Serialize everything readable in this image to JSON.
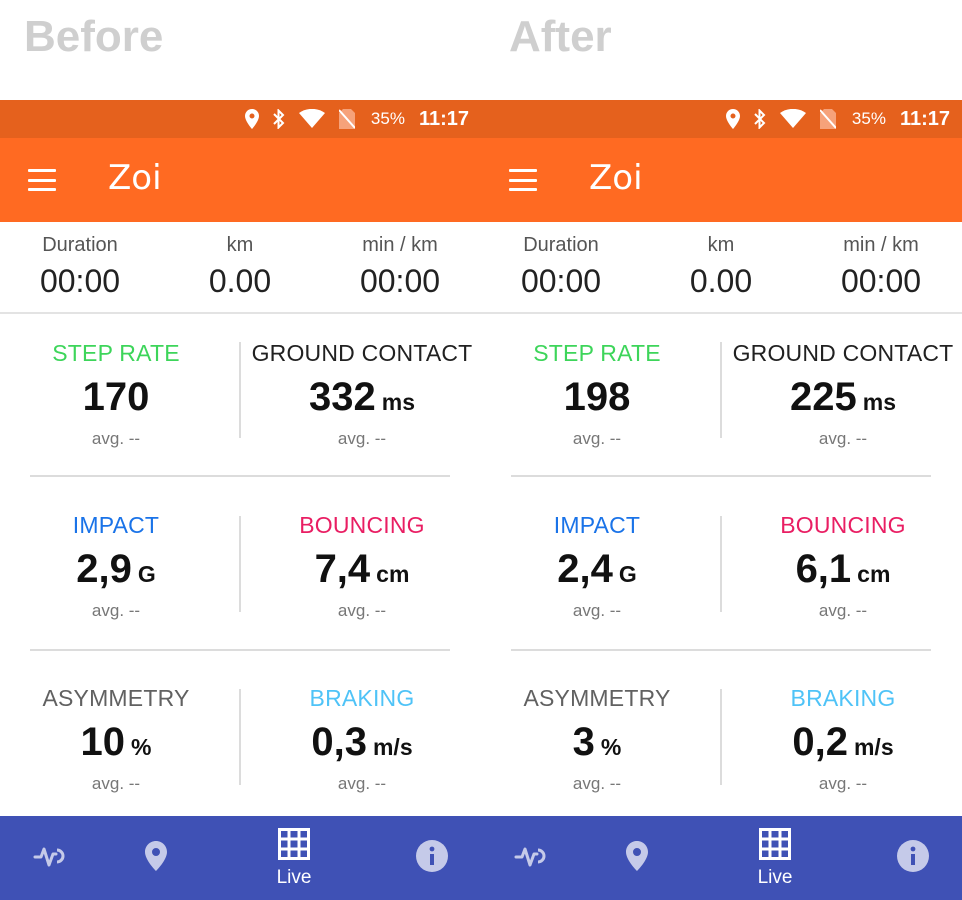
{
  "comparison": {
    "left_heading": "Before",
    "right_heading": "After"
  },
  "status": {
    "battery": "35%",
    "time": "11:17"
  },
  "app": {
    "title": "Zoi"
  },
  "summary": {
    "duration_label": "Duration",
    "distance_label": "km",
    "pace_label": "min / km",
    "duration_value": "00:00",
    "distance_value": "0.00",
    "pace_value": "00:00"
  },
  "labels": {
    "step_rate": "STEP RATE",
    "ground_contact": "GROUND CONTACT",
    "impact": "IMPACT",
    "bouncing": "BOUNCING",
    "asymmetry": "ASYMMETRY",
    "braking": "BRAKING",
    "avg": "avg. --"
  },
  "units": {
    "ms": "ms",
    "g": "G",
    "cm": "cm",
    "pct": "%",
    "ms2": "m/s"
  },
  "colors": {
    "step_rate": "#3dd55a",
    "ground_contact": "#212121",
    "impact": "#1a73e8",
    "bouncing": "#e91e63",
    "asymmetry": "#616161",
    "braking": "#4fc3f7",
    "statusbar": "#e5611d",
    "appbar": "#ff6a22",
    "navbar": "#3f51b5"
  },
  "before": {
    "step_rate": "170",
    "ground_contact": "332",
    "impact": "2,9",
    "bouncing": "7,4",
    "asymmetry": "10",
    "braking": "0,3"
  },
  "after": {
    "step_rate": "198",
    "ground_contact": "225",
    "impact": "2,4",
    "bouncing": "6,1",
    "asymmetry": "3",
    "braking": "0,2"
  },
  "nav": {
    "items": [
      {
        "icon": "activity-icon",
        "label": ""
      },
      {
        "icon": "location-pin-icon",
        "label": ""
      },
      {
        "icon": "grid-icon",
        "label": "Live"
      },
      {
        "icon": "info-icon",
        "label": ""
      }
    ]
  }
}
